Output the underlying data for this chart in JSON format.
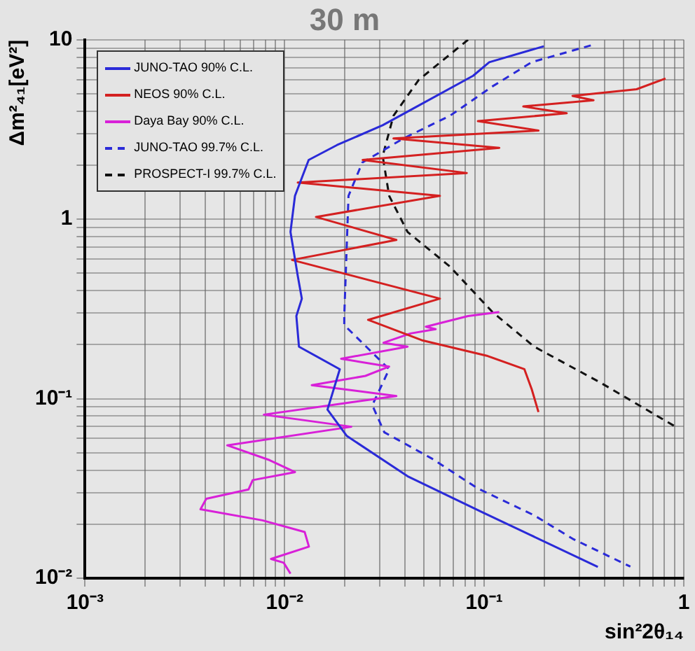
{
  "chart_data": {
    "type": "line",
    "title": "30 m",
    "xlabel": "sin²2θ₁₄",
    "ylabel": "Δm²₄₁[eV²]",
    "log": "xy",
    "grid": true,
    "legend": "top left",
    "marker": "none",
    "xlim": [
      0.001,
      1
    ],
    "ylim": [
      0.01,
      10
    ],
    "xticks": [
      {
        "value": 0.001,
        "label": "10⁻³"
      },
      {
        "value": 0.002,
        "label": null
      },
      {
        "value": 0.003,
        "label": null
      },
      {
        "value": 0.004,
        "label": null
      },
      {
        "value": 0.005,
        "label": null
      },
      {
        "value": 0.006,
        "label": null
      },
      {
        "value": 0.007,
        "label": null
      },
      {
        "value": 0.008,
        "label": null
      },
      {
        "value": 0.009,
        "label": null
      },
      {
        "value": 0.01,
        "label": "10⁻²"
      },
      {
        "value": 0.02,
        "label": null
      },
      {
        "value": 0.03,
        "label": null
      },
      {
        "value": 0.04,
        "label": null
      },
      {
        "value": 0.05,
        "label": null
      },
      {
        "value": 0.06,
        "label": null
      },
      {
        "value": 0.07,
        "label": null
      },
      {
        "value": 0.08,
        "label": null
      },
      {
        "value": 0.09,
        "label": null
      },
      {
        "value": 0.1,
        "label": "10⁻¹"
      },
      {
        "value": 0.2,
        "label": null
      },
      {
        "value": 0.3,
        "label": null
      },
      {
        "value": 0.4,
        "label": null
      },
      {
        "value": 0.5,
        "label": null
      },
      {
        "value": 0.6,
        "label": null
      },
      {
        "value": 0.7,
        "label": null
      },
      {
        "value": 0.8,
        "label": null
      },
      {
        "value": 0.9,
        "label": null
      },
      1
    ],
    "yticks": [
      {
        "value": 0.01,
        "label": "10⁻²"
      },
      {
        "value": 0.02,
        "label": null
      },
      {
        "value": 0.03,
        "label": null
      },
      {
        "value": 0.04,
        "label": null
      },
      {
        "value": 0.05,
        "label": null
      },
      {
        "value": 0.06,
        "label": null
      },
      {
        "value": 0.07,
        "label": null
      },
      {
        "value": 0.08,
        "label": null
      },
      {
        "value": 0.09,
        "label": null
      },
      {
        "value": 0.1,
        "label": "10⁻¹"
      },
      {
        "value": 0.2,
        "label": null
      },
      {
        "value": 0.3,
        "label": null
      },
      {
        "value": 0.4,
        "label": null
      },
      {
        "value": 0.5,
        "label": null
      },
      {
        "value": 0.6,
        "label": null
      },
      {
        "value": 0.7,
        "label": null
      },
      {
        "value": 0.8,
        "label": null
      },
      {
        "value": 0.9,
        "label": null
      },
      1,
      {
        "value": 2,
        "label": null
      },
      {
        "value": 3,
        "label": null
      },
      {
        "value": 4,
        "label": null
      },
      {
        "value": 5,
        "label": null
      },
      {
        "value": 6,
        "label": null
      },
      {
        "value": 7,
        "label": null
      },
      {
        "value": 8,
        "label": null
      },
      {
        "value": 9,
        "label": null
      },
      10
    ],
    "series": [
      {
        "name": "JUNO-TAO 90% C.L.",
        "color": "#2a2ad8",
        "line_style": "solid",
        "x": [
          0.199,
          0.106,
          0.088,
          0.0434,
          0.031,
          0.0183,
          0.0132,
          0.01127,
          0.0107,
          0.01164,
          0.0122,
          0.01145,
          0.0118,
          0.0189,
          0.0164,
          0.0205,
          0.0413,
          0.098,
          0.371
        ],
        "values": [
          9.2,
          7.5,
          6.3,
          4.1,
          3.34,
          2.59,
          2.14,
          1.35,
          0.85,
          0.483,
          0.361,
          0.289,
          0.195,
          0.146,
          0.087,
          0.062,
          0.037,
          0.0233,
          0.01156
        ]
      },
      {
        "name": "NEOS 90% C.L.",
        "color": "#d42020",
        "line_style": "solid",
        "x": [
          0.81,
          0.58,
          0.277,
          0.353,
          0.157,
          0.259,
          0.093,
          0.187,
          0.0351,
          0.119,
          0.0246,
          0.0818,
          0.01164,
          0.06,
          0.01436,
          0.0363,
          0.0109,
          0.06,
          0.0262,
          0.0486,
          0.104,
          0.159,
          0.173,
          0.187
        ],
        "values": [
          6.08,
          5.3,
          4.87,
          4.6,
          4.25,
          3.9,
          3.52,
          3.12,
          2.82,
          2.5,
          2.14,
          1.81,
          1.6,
          1.35,
          1.03,
          0.767,
          0.593,
          0.361,
          0.275,
          0.212,
          0.173,
          0.146,
          0.113,
          0.0843
        ]
      },
      {
        "name": "Daya Bay 90% C.L.",
        "color": "#d820d8",
        "line_style": "solid",
        "x": [
          0.119,
          0.083,
          0.051,
          0.0571,
          0.0427,
          0.0313,
          0.0413,
          0.0192,
          0.0334,
          0.0254,
          0.01368,
          0.0363,
          0.0209,
          0.00787,
          0.0216,
          0.00516,
          0.0084,
          0.01127,
          0.00692,
          0.00659,
          0.00405,
          0.00379,
          0.00775,
          0.0126,
          0.01324,
          0.00855,
          0.00989,
          0.0107
        ],
        "values": [
          0.304,
          0.289,
          0.252,
          0.244,
          0.231,
          0.205,
          0.195,
          0.167,
          0.151,
          0.134,
          0.119,
          0.1035,
          0.095,
          0.0815,
          0.0698,
          0.055,
          0.0455,
          0.039,
          0.0352,
          0.0312,
          0.0277,
          0.0242,
          0.021,
          0.0181,
          0.015,
          0.0128,
          0.0122,
          0.0106
        ]
      },
      {
        "name": "JUNO-TAO 99.7% C.L.",
        "color": "#2a2ad8",
        "line_style": "dashed",
        "x": [
          0.342,
          0.173,
          0.11,
          0.0673,
          0.0394,
          0.0245,
          0.0209,
          0.0199,
          0.0199,
          0.0334,
          0.0275,
          0.0316,
          0.0545,
          0.093,
          0.178,
          0.277,
          0.54
        ],
        "values": [
          9.3,
          7.5,
          5.5,
          3.77,
          2.82,
          2.07,
          1.35,
          0.289,
          0.257,
          0.146,
          0.092,
          0.065,
          0.0465,
          0.0316,
          0.0224,
          0.0166,
          0.0116
        ]
      },
      {
        "name": "PROSPECT-I 99.7% C.L.",
        "color": "#111111",
        "line_style": "dashed",
        "x": [
          0.083,
          0.047,
          0.0351,
          0.031,
          0.0334,
          0.0413,
          0.0673,
          0.11,
          0.178,
          0.382,
          0.906
        ],
        "values": [
          10,
          5.98,
          3.77,
          2.25,
          1.35,
          0.85,
          0.545,
          0.304,
          0.195,
          0.123,
          0.07
        ]
      }
    ]
  }
}
